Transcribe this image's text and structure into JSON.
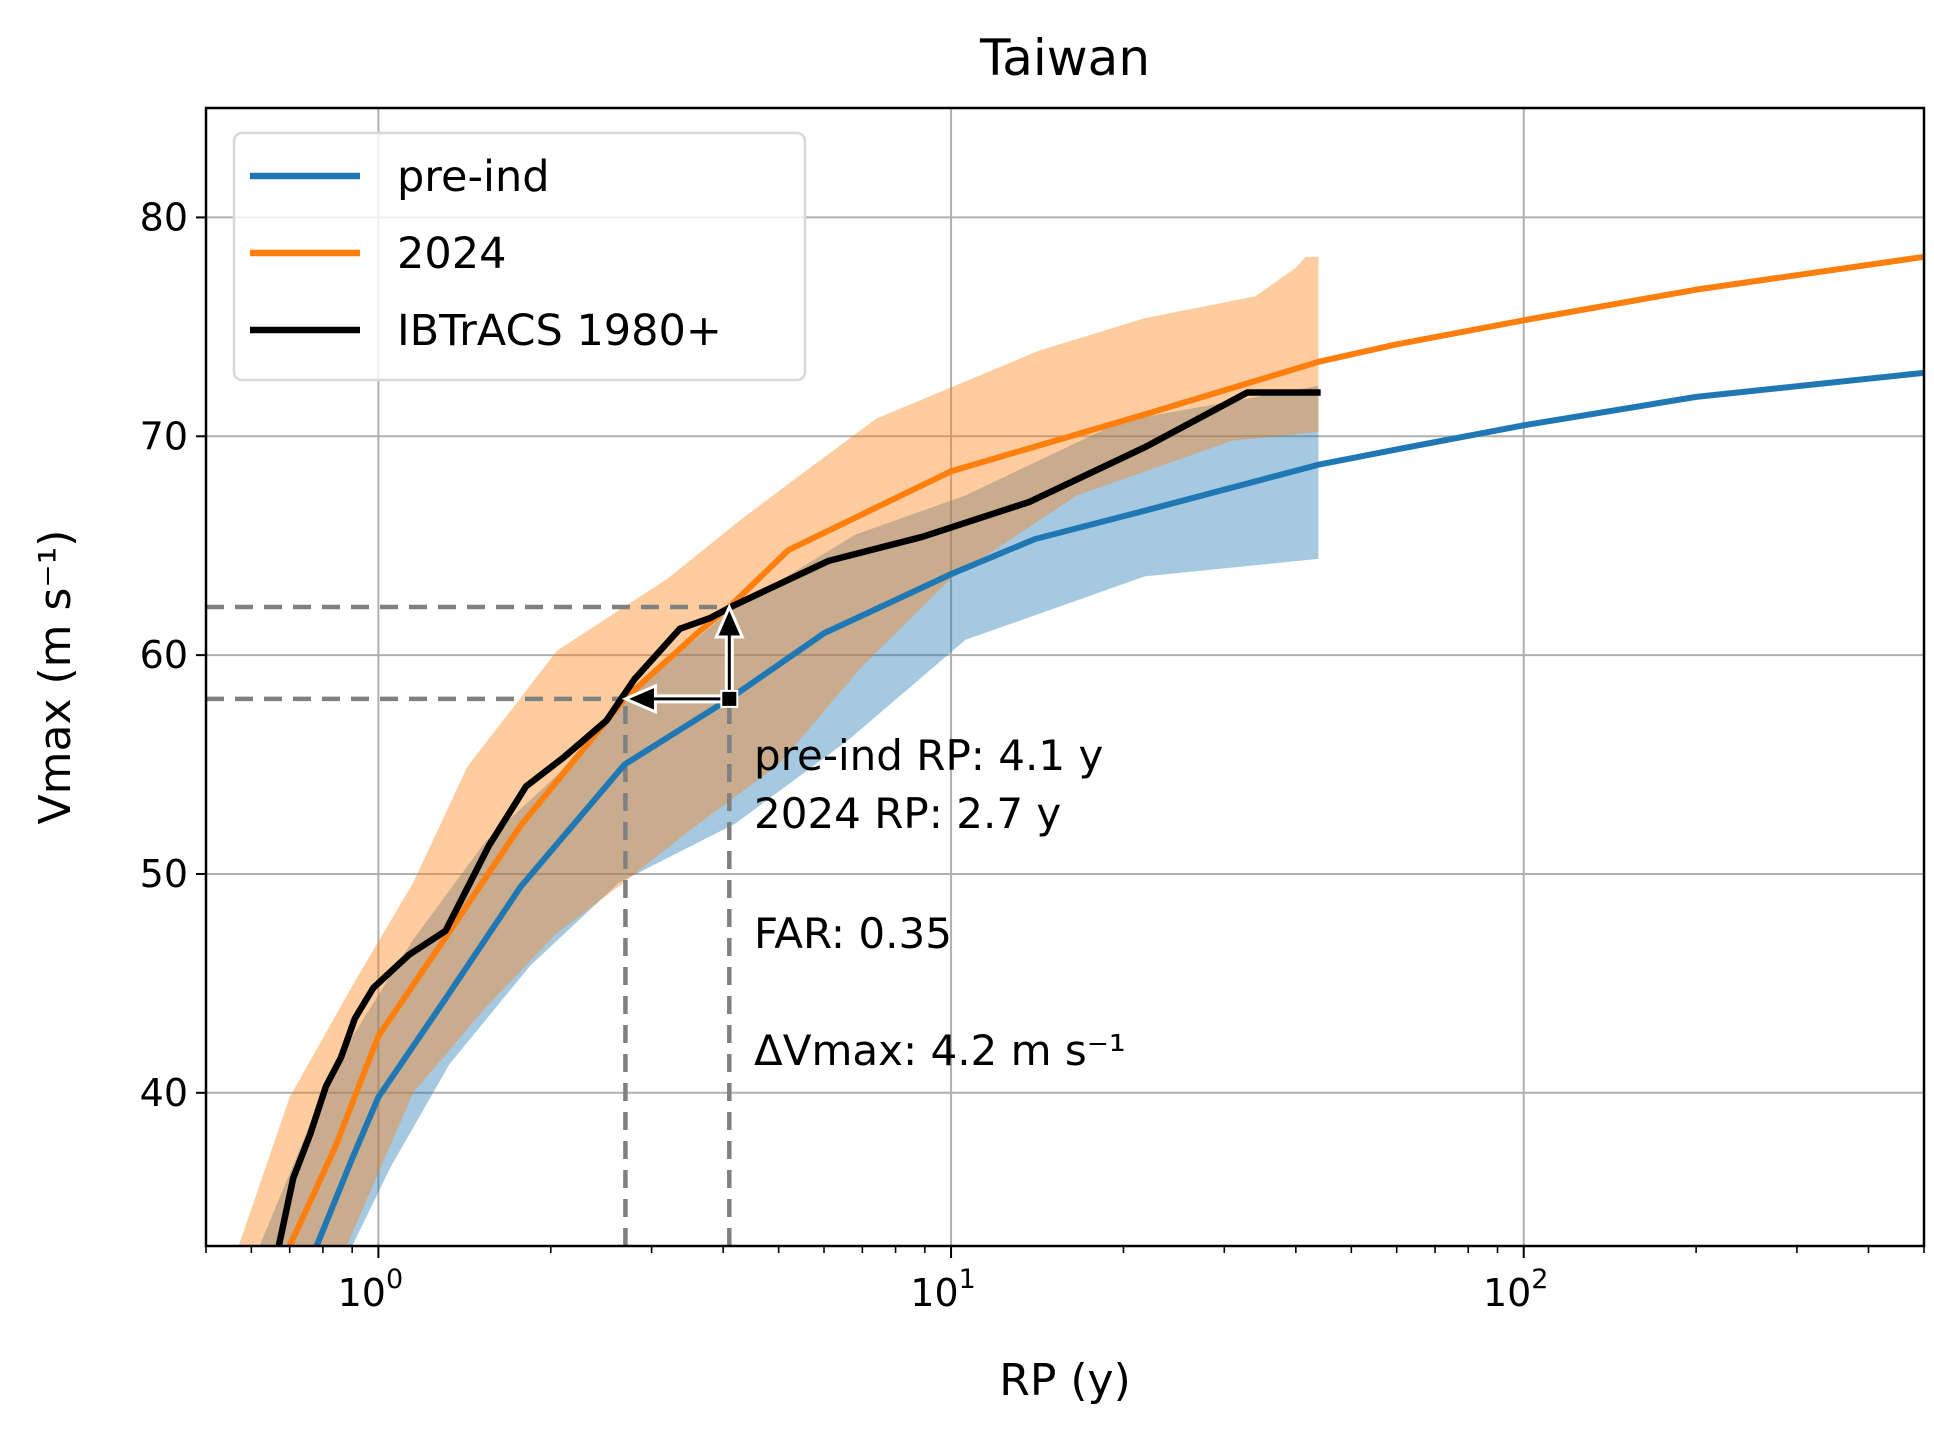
{
  "chart_data": {
    "type": "line",
    "title": "Taiwan",
    "xlabel": "RP (y)",
    "ylabel": "Vmax (m s⁻¹)",
    "xscale": "log",
    "xlim": [
      0.5,
      500
    ],
    "ylim": [
      33,
      85
    ],
    "grid": true,
    "legend_placement": "top-left",
    "yticks": [
      40,
      50,
      60,
      70,
      80
    ],
    "xticks": [
      {
        "base": "10",
        "exp": "0",
        "value": 1
      },
      {
        "base": "10",
        "exp": "1",
        "value": 10
      },
      {
        "base": "10",
        "exp": "2",
        "value": 100
      }
    ],
    "colors": {
      "pre_ind": "#1f77b4",
      "y2024": "#ff7f0e",
      "ibtracs": "#000000",
      "guide": "#808080"
    },
    "series": [
      {
        "name": "pre-ind",
        "color": "#1f77b4",
        "x": [
          0.78,
          0.9,
          1.0,
          1.31,
          1.77,
          2.69,
          4.1,
          6.0,
          10,
          14,
          21.8,
          43.8,
          60,
          100,
          200,
          500
        ],
        "y": [
          33,
          37,
          39.8,
          44.3,
          49.4,
          55,
          58,
          61,
          63.7,
          65.3,
          66.6,
          68.7,
          69.4,
          70.5,
          71.8,
          72.9
        ]
      },
      {
        "name": "2024",
        "color": "#ff7f0e",
        "x": [
          0.7,
          0.84,
          1.0,
          1.31,
          1.77,
          2.69,
          3.64,
          4.1,
          5.2,
          10,
          21.8,
          43.8,
          60,
          100,
          200,
          500
        ],
        "y": [
          33,
          37.5,
          42.6,
          47.1,
          52.2,
          58,
          61.1,
          62.2,
          64.8,
          68.4,
          71.0,
          73.4,
          74.2,
          75.3,
          76.7,
          78.2
        ]
      },
      {
        "name": "IBTrACS 1980+",
        "color": "#000000",
        "x": [
          0.67,
          0.71,
          0.76,
          0.81,
          0.86,
          0.91,
          0.98,
          1.13,
          1.31,
          1.56,
          1.81,
          2.1,
          2.5,
          2.8,
          3.36,
          3.8,
          4.2,
          6.1,
          8.9,
          13.7,
          21.8,
          32.9,
          44.2
        ],
        "y": [
          33,
          36.1,
          38.1,
          40.3,
          41.6,
          43.4,
          44.8,
          46.3,
          47.4,
          51.3,
          54,
          55.3,
          57,
          58.9,
          61.2,
          61.7,
          62.3,
          64.3,
          65.4,
          67.0,
          69.5,
          72.0,
          72.0
        ]
      }
    ],
    "bands": [
      {
        "of": "pre-ind",
        "color": "#1f77b4",
        "opacity": 0.4,
        "upper": {
          "x": [
            0.62,
            0.84,
            1.15,
            1.54,
            2.05,
            2.68,
            4.1,
            6.8,
            10.6,
            19.9,
            43.8
          ],
          "y": [
            33,
            41.3,
            47,
            51.5,
            54.5,
            58,
            62,
            65.5,
            67.3,
            70.7,
            72.3
          ]
        },
        "lower": {
          "x": [
            0.9,
            1.05,
            1.33,
            1.84,
            2.63,
            4.2,
            6.6,
            10.6,
            21.8,
            43.8
          ],
          "y": [
            33,
            36.6,
            41.3,
            45.8,
            49.6,
            52.3,
            56.1,
            60.7,
            63.6,
            64.4
          ]
        }
      },
      {
        "of": "2024",
        "color": "#ff7f0e",
        "opacity": 0.4,
        "upper": {
          "x": [
            0.57,
            0.7,
            0.91,
            1.15,
            1.43,
            2.05,
            3.2,
            4.3,
            5.5,
            7.4,
            14.2,
            21.8,
            34,
            40,
            41.6,
            43.8
          ],
          "y": [
            33,
            39.8,
            45.1,
            49.6,
            54.9,
            60.2,
            63.5,
            66.2,
            68.3,
            70.8,
            73.9,
            75.4,
            76.4,
            77.7,
            78.2,
            78.2
          ]
        },
        "lower": {
          "x": [
            0.88,
            1.15,
            1.54,
            2.05,
            2.68,
            3.5,
            5.0,
            7.0,
            10,
            16.6,
            31,
            43.8
          ],
          "y": [
            33,
            40,
            43.9,
            47.3,
            49.6,
            52,
            55,
            59.5,
            63.5,
            67.3,
            69.8,
            70.2
          ]
        }
      }
    ],
    "annotation": {
      "level_pre_ind": 58.0,
      "level_2024": 62.2,
      "rp_pre_ind": 4.1,
      "rp_2024": 2.7,
      "lines": [
        "pre-ind RP: 4.1 y",
        "2024 RP: 2.7 y",
        "FAR: 0.35",
        "ΔVmax: 4.2 m s⁻¹"
      ]
    }
  }
}
